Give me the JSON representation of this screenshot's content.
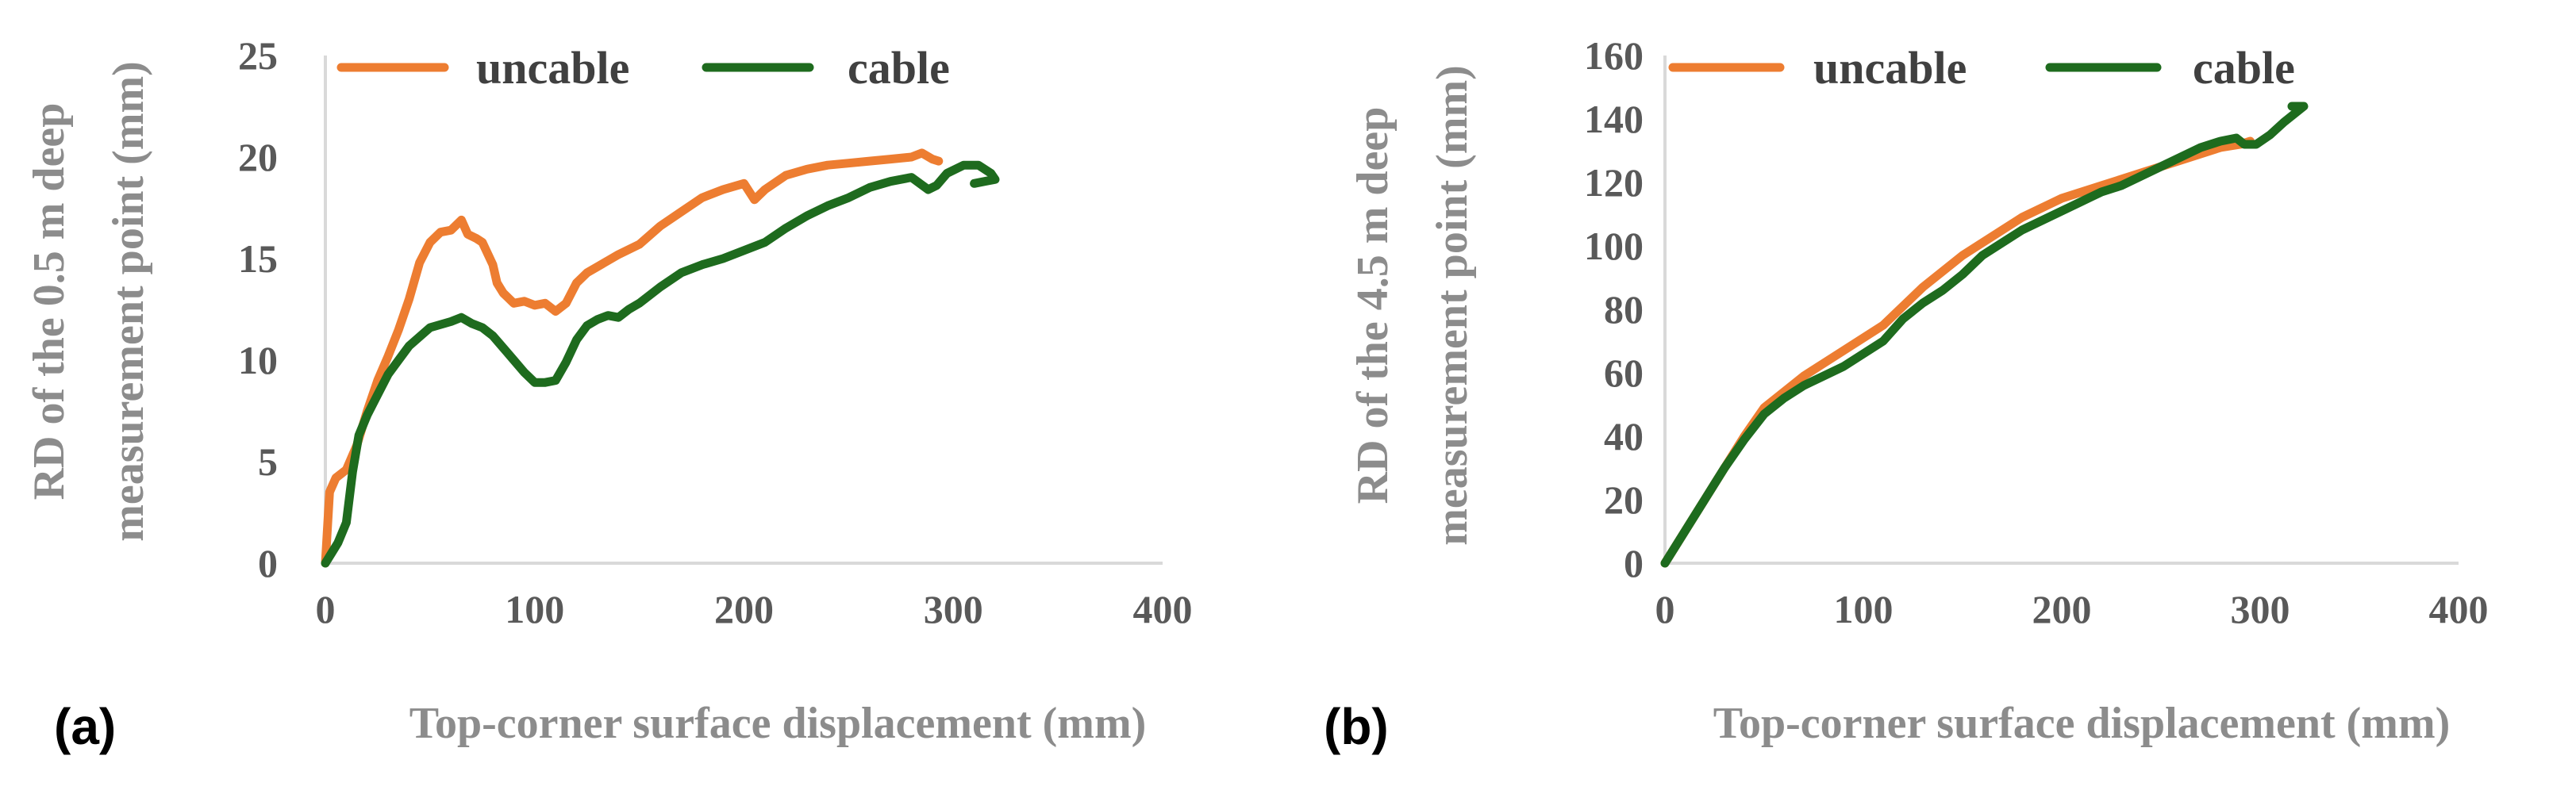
{
  "colors": {
    "uncable": "#ED7D31",
    "cable": "#1E6B1E",
    "axis": "#d9d9d9",
    "tick_text": "#595959",
    "axis_title": "#8c8c8c"
  },
  "chart_data": [
    {
      "type": "line",
      "panel_label": "(a)",
      "xlabel": "Top-corner surface displacement (mm)",
      "ylabel_line1": "RD of the 0.5 m deep",
      "ylabel_line2": "measurement point (mm)",
      "xlim": [
        0,
        400
      ],
      "ylim": [
        0,
        25
      ],
      "xticks": [
        "0",
        "100",
        "200",
        "300",
        "400"
      ],
      "yticks": [
        "0",
        "5",
        "10",
        "15",
        "20",
        "25"
      ],
      "legend_position": "top",
      "grid": false,
      "series": [
        {
          "name": "uncable",
          "x": [
            0,
            2,
            5,
            10,
            15,
            20,
            25,
            30,
            35,
            40,
            45,
            50,
            55,
            60,
            65,
            68,
            72,
            75,
            80,
            82,
            85,
            90,
            95,
            100,
            105,
            110,
            115,
            120,
            125,
            130,
            140,
            150,
            160,
            170,
            180,
            190,
            200,
            205,
            210,
            220,
            230,
            240,
            250,
            260,
            270,
            280,
            285,
            290,
            293
          ],
          "y": [
            0,
            3.5,
            4.2,
            4.6,
            5.8,
            7.5,
            9.0,
            10.2,
            11.5,
            13.0,
            14.8,
            15.8,
            16.3,
            16.4,
            16.9,
            16.2,
            16.0,
            15.8,
            14.7,
            13.8,
            13.3,
            12.8,
            12.9,
            12.7,
            12.8,
            12.4,
            12.8,
            13.8,
            14.3,
            14.6,
            15.2,
            15.7,
            16.6,
            17.3,
            18.0,
            18.4,
            18.7,
            17.9,
            18.4,
            19.1,
            19.4,
            19.6,
            19.7,
            19.8,
            19.9,
            20.0,
            20.2,
            19.9,
            19.8
          ]
        },
        {
          "name": "cable",
          "x": [
            0,
            3,
            6,
            10,
            13,
            16,
            20,
            25,
            30,
            40,
            50,
            60,
            65,
            70,
            75,
            80,
            85,
            90,
            95,
            100,
            105,
            110,
            115,
            120,
            125,
            130,
            135,
            140,
            145,
            150,
            160,
            170,
            180,
            190,
            200,
            210,
            220,
            230,
            240,
            250,
            260,
            270,
            280,
            288,
            292,
            297,
            305,
            312,
            318,
            320,
            315,
            310
          ],
          "y": [
            0,
            0.5,
            1.0,
            2.0,
            4.5,
            6.3,
            7.3,
            8.3,
            9.3,
            10.7,
            11.6,
            11.9,
            12.1,
            11.8,
            11.6,
            11.2,
            10.6,
            10.0,
            9.4,
            8.9,
            8.9,
            9.0,
            9.9,
            11.0,
            11.7,
            12.0,
            12.2,
            12.1,
            12.5,
            12.8,
            13.6,
            14.3,
            14.7,
            15.0,
            15.4,
            15.8,
            16.5,
            17.1,
            17.6,
            18.0,
            18.5,
            18.8,
            19.0,
            18.4,
            18.6,
            19.2,
            19.6,
            19.6,
            19.2,
            18.9,
            18.8,
            18.7
          ]
        }
      ]
    },
    {
      "type": "line",
      "panel_label": "(b)",
      "xlabel": "Top-corner surface displacement (mm)",
      "ylabel_line1": "RD of the 4.5 m deep",
      "ylabel_line2": "measurement point (mm)",
      "xlim": [
        0,
        400
      ],
      "ylim": [
        0,
        160
      ],
      "xticks": [
        "0",
        "100",
        "200",
        "300",
        "400"
      ],
      "yticks": [
        "0",
        "20",
        "40",
        "60",
        "80",
        "100",
        "120",
        "140",
        "160"
      ],
      "legend_position": "top",
      "grid": false,
      "series": [
        {
          "name": "uncable",
          "x": [
            0,
            10,
            20,
            30,
            40,
            50,
            60,
            70,
            80,
            90,
            100,
            110,
            120,
            130,
            140,
            150,
            160,
            170,
            180,
            190,
            200,
            210,
            220,
            230,
            240,
            250,
            260,
            270,
            280,
            290,
            295
          ],
          "y": [
            0,
            10,
            20,
            30,
            40,
            49,
            54,
            59,
            63,
            67,
            71,
            75,
            81,
            87,
            92,
            97,
            101,
            105,
            109,
            112,
            115,
            117,
            119,
            121,
            123,
            125,
            127,
            129,
            131,
            132,
            133
          ]
        },
        {
          "name": "cable",
          "x": [
            0,
            10,
            20,
            30,
            40,
            50,
            60,
            70,
            80,
            90,
            100,
            110,
            120,
            130,
            140,
            150,
            160,
            170,
            180,
            190,
            200,
            210,
            220,
            230,
            240,
            250,
            260,
            270,
            280,
            288,
            292,
            298,
            305,
            312,
            318,
            322,
            316
          ],
          "y": [
            0,
            10,
            20,
            30,
            39,
            47,
            52,
            56,
            59,
            62,
            66,
            70,
            77,
            82,
            86,
            91,
            97,
            101,
            105,
            108,
            111,
            114,
            117,
            119,
            122,
            125,
            128,
            131,
            133,
            134,
            132,
            132,
            135,
            139,
            142,
            144,
            144
          ]
        }
      ]
    }
  ]
}
